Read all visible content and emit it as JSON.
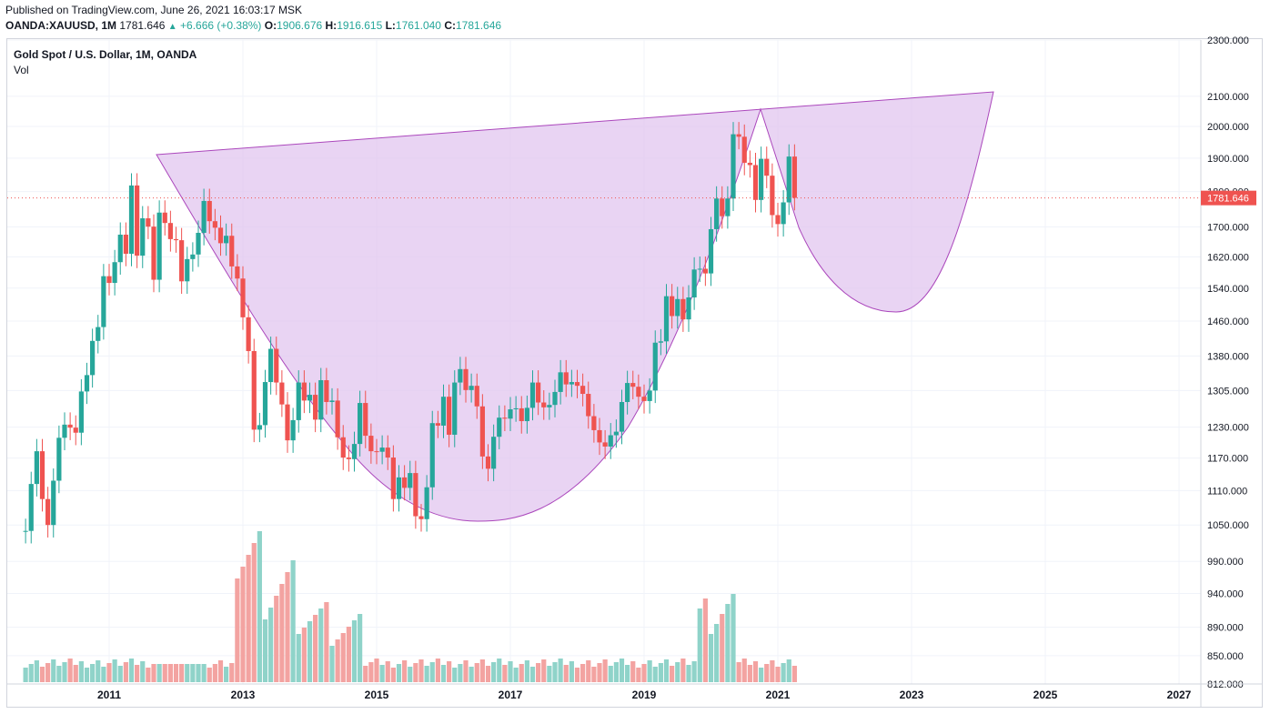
{
  "header": {
    "published": "Published on TradingView.com, June 26, 2021 16:03:17 MSK",
    "symbol": "OANDA:XAUUSD, 1M",
    "last": "1781.646",
    "change": "+6.666 (+0.38%)",
    "o_label": "O:",
    "o_value": "1906.676",
    "h_label": "H:",
    "h_value": "1916.615",
    "l_label": "L:",
    "l_value": "1761.040",
    "c_label": "C:",
    "c_value": "1781.646"
  },
  "legend": {
    "title": "Gold Spot / U.S. Dollar, 1M, OANDA",
    "vol_label": "Vol"
  },
  "colors": {
    "up": "#26a69a",
    "down": "#ef5350",
    "up_volume": "#8fd3c9",
    "down_volume": "#f3a3a1",
    "pattern_fill": "#e1c6ef",
    "pattern_line": "#ab47bc",
    "price_line": "#ef5350"
  },
  "chart_data": {
    "type": "candlestick",
    "title": "Gold Spot / U.S. Dollar, 1M, OANDA",
    "y_scale": "log",
    "ylim": [
      812,
      2300
    ],
    "xlim": [
      2009.7,
      2027.1
    ],
    "y_ticks": [
      "2300.000",
      "2100.000",
      "2000.000",
      "1900.000",
      "1800.000",
      "1700.000",
      "1620.000",
      "1540.000",
      "1460.000",
      "1380.000",
      "1305.000",
      "1230.000",
      "1170.000",
      "1110.000",
      "1050.000",
      "990.000",
      "940.000",
      "890.000",
      "850.000",
      "812.000"
    ],
    "x_ticks": [
      "2011",
      "2013",
      "2015",
      "2017",
      "2019",
      "2021",
      "2023",
      "2025",
      "2027"
    ],
    "last_price": "1781.646",
    "closes": [
      1040,
      1122,
      1183,
      1095,
      1050,
      1128,
      1209,
      1235,
      1229,
      1219,
      1303,
      1338,
      1414,
      1446,
      1570,
      1553,
      1606,
      1679,
      1628,
      1818,
      1623,
      1724,
      1701,
      1561,
      1740,
      1711,
      1667,
      1664,
      1557,
      1614,
      1626,
      1684,
      1773,
      1716,
      1698,
      1656,
      1676,
      1595,
      1564,
      1469,
      1391,
      1225,
      1234,
      1323,
      1396,
      1322,
      1276,
      1204,
      1244,
      1322,
      1284,
      1296,
      1245,
      1327,
      1281,
      1284,
      1210,
      1171,
      1168,
      1197,
      1279,
      1213,
      1183,
      1182,
      1190,
      1171,
      1095,
      1134,
      1115,
      1142,
      1065,
      1060,
      1116,
      1238,
      1233,
      1292,
      1215,
      1322,
      1351,
      1306,
      1315,
      1272,
      1173,
      1150,
      1211,
      1249,
      1247,
      1266,
      1268,
      1242,
      1269,
      1322,
      1280,
      1270,
      1275,
      1302,
      1344,
      1318,
      1323,
      1315,
      1298,
      1252,
      1224,
      1200,
      1192,
      1214,
      1221,
      1281,
      1321,
      1313,
      1292,
      1283,
      1305,
      1410,
      1413,
      1520,
      1472,
      1513,
      1464,
      1517,
      1587,
      1589,
      1577,
      1694,
      1780,
      1730,
      1780,
      1975,
      1967,
      1886,
      1879,
      1776,
      1898,
      1847,
      1733,
      1708,
      1769,
      1905,
      1782
    ]
  }
}
